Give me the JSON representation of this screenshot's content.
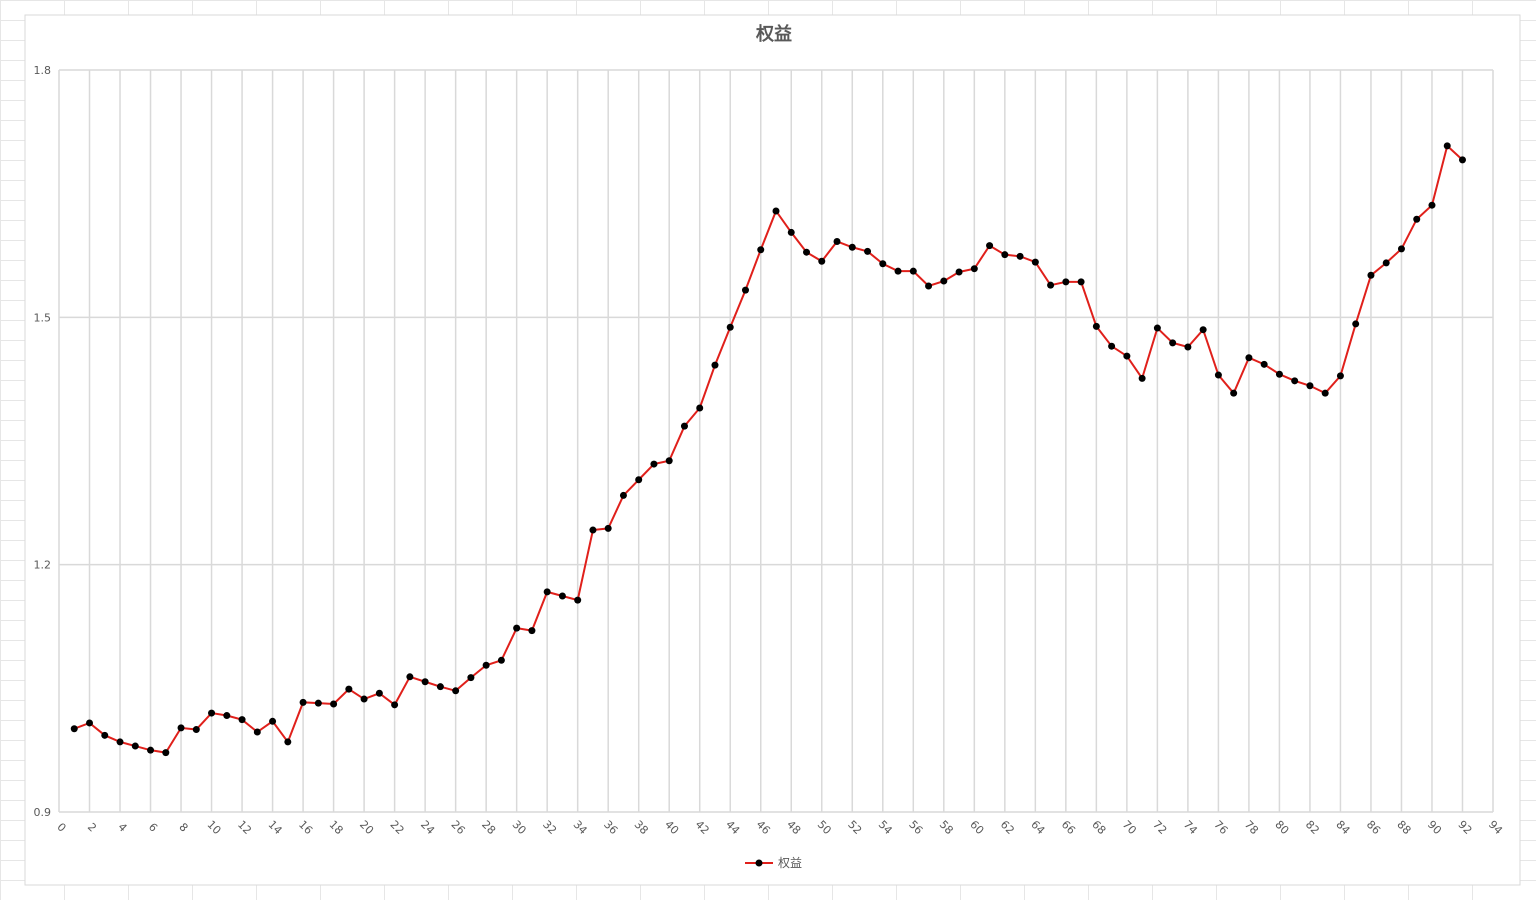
{
  "chart_data": {
    "type": "line",
    "title": "权益",
    "x": [
      1,
      2,
      3,
      4,
      5,
      6,
      7,
      8,
      9,
      10,
      11,
      12,
      13,
      14,
      15,
      16,
      17,
      18,
      19,
      20,
      21,
      22,
      23,
      24,
      25,
      26,
      27,
      28,
      29,
      30,
      31,
      32,
      33,
      34,
      35,
      36,
      37,
      38,
      39,
      40,
      41,
      42,
      43,
      44,
      45,
      46,
      47,
      48,
      49,
      50,
      51,
      52,
      53,
      54,
      55,
      56,
      57,
      58,
      59,
      60,
      61,
      62,
      63,
      64,
      65,
      66,
      67,
      68,
      69,
      70,
      71,
      72,
      73,
      74,
      75,
      76,
      77,
      78,
      79,
      80,
      81,
      82,
      83,
      84,
      85,
      86,
      87,
      88,
      89,
      90,
      91,
      92
    ],
    "series": [
      {
        "name": "权益",
        "color": "#e0201b",
        "marker_color": "#000000",
        "values": [
          1.001,
          1.008,
          0.993,
          0.985,
          0.98,
          0.975,
          0.972,
          1.002,
          1.0,
          1.02,
          1.017,
          1.012,
          0.997,
          1.01,
          0.985,
          1.033,
          1.032,
          1.031,
          1.049,
          1.037,
          1.044,
          1.03,
          1.064,
          1.058,
          1.052,
          1.047,
          1.063,
          1.078,
          1.084,
          1.123,
          1.12,
          1.167,
          1.162,
          1.157,
          1.242,
          1.244,
          1.284,
          1.303,
          1.322,
          1.326,
          1.368,
          1.39,
          1.442,
          1.488,
          1.533,
          1.582,
          1.629,
          1.603,
          1.579,
          1.568,
          1.592,
          1.585,
          1.58,
          1.565,
          1.556,
          1.556,
          1.538,
          1.544,
          1.555,
          1.559,
          1.587,
          1.576,
          1.574,
          1.567,
          1.539,
          1.543,
          1.543,
          1.489,
          1.465,
          1.453,
          1.426,
          1.487,
          1.469,
          1.464,
          1.485,
          1.43,
          1.408,
          1.451,
          1.443,
          1.431,
          1.423,
          1.417,
          1.408,
          1.429,
          1.492,
          1.551,
          1.566,
          1.583,
          1.619,
          1.636,
          1.708,
          1.691
        ]
      }
    ],
    "xlim": [
      0,
      94
    ],
    "xticks": [
      0,
      2,
      4,
      6,
      8,
      10,
      12,
      14,
      16,
      18,
      20,
      22,
      24,
      26,
      28,
      30,
      32,
      34,
      36,
      38,
      40,
      42,
      44,
      46,
      48,
      50,
      52,
      54,
      56,
      58,
      60,
      62,
      64,
      66,
      68,
      70,
      72,
      74,
      76,
      78,
      80,
      82,
      84,
      86,
      88,
      90,
      92,
      94
    ],
    "ylim": [
      0.9,
      1.8
    ],
    "yticks": [
      0.9,
      1.2,
      1.5,
      1.8
    ],
    "grid": true,
    "legend": "bottom"
  }
}
